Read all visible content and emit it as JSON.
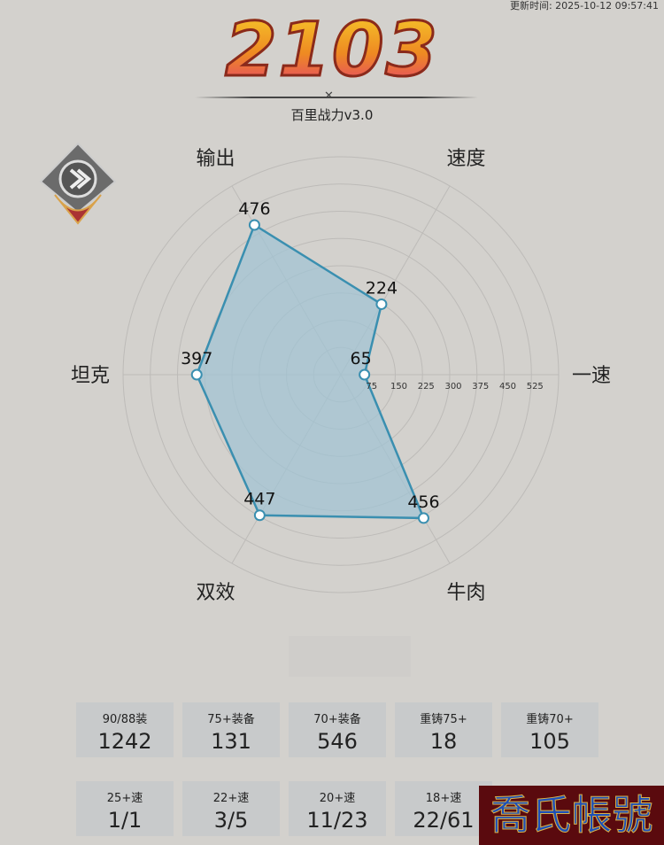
{
  "update_time": "更新时间: 2025-10-12 09:57:41",
  "score": "2103",
  "subtitle": "百里战力v3.0",
  "radar": {
    "axes": [
      "一速",
      "速度",
      "输出",
      "坦克",
      "双效",
      "牛肉"
    ],
    "values": [
      65,
      224,
      476,
      397,
      447,
      456
    ],
    "ring_labels": [
      "75",
      "150",
      "225",
      "300",
      "375",
      "450",
      "525"
    ],
    "max": 600,
    "colors": {
      "stroke": "#3a8fb0",
      "fill": "#9fc3d4"
    }
  },
  "stats_row1": [
    {
      "label": "90/88装",
      "value": "1242"
    },
    {
      "label": "75+装备",
      "value": "131"
    },
    {
      "label": "70+装备",
      "value": "546"
    },
    {
      "label": "重铸75+",
      "value": "18"
    },
    {
      "label": "重铸70+",
      "value": "105"
    }
  ],
  "stats_row2": [
    {
      "label": "25+速",
      "value": "1/1"
    },
    {
      "label": "22+速",
      "value": "3/5"
    },
    {
      "label": "20+速",
      "value": "11/23"
    },
    {
      "label": "18+速",
      "value": "22/61"
    }
  ],
  "watermark": "喬氏帳號"
}
